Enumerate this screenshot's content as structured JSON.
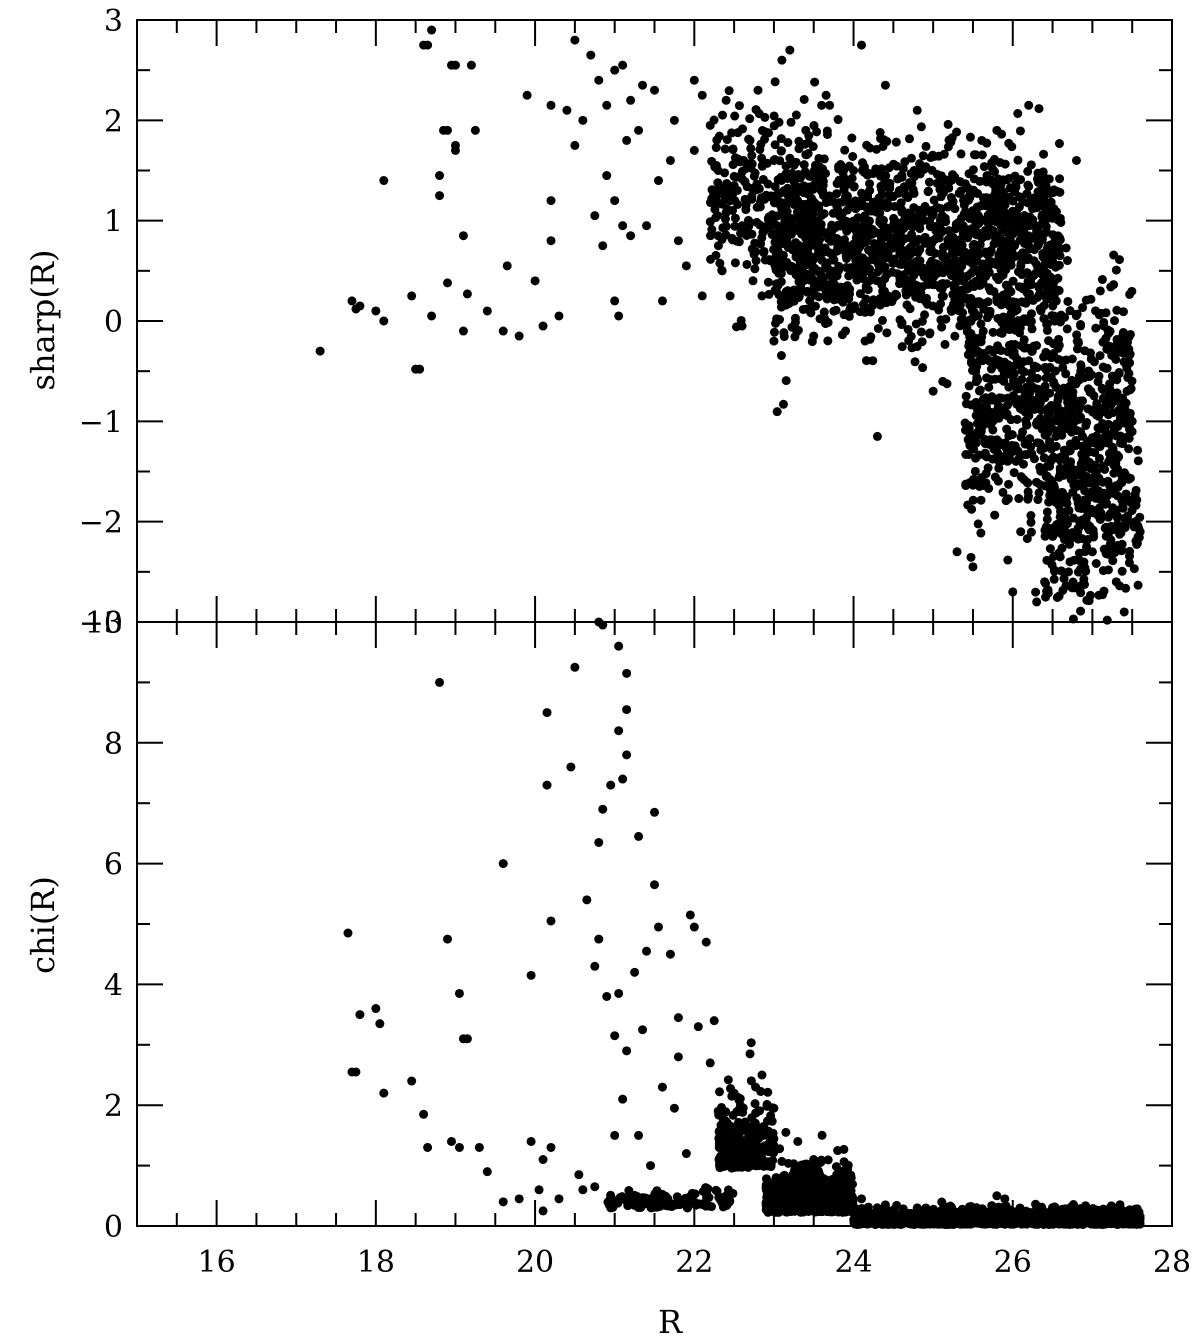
{
  "chart_data": [
    {
      "type": "scatter",
      "panel": "top",
      "title": "",
      "xlabel": "",
      "ylabel": "sharp(R)",
      "xlim": [
        15,
        28
      ],
      "ylim": [
        -3,
        3
      ],
      "x_ticks_major": [
        16,
        18,
        20,
        22,
        24,
        26,
        28
      ],
      "y_ticks_major": [
        -3,
        -2,
        -1,
        0,
        1,
        2,
        3
      ],
      "y_tick_labels": [
        "−3",
        "−2",
        "−1",
        "0",
        "1",
        "2",
        "3"
      ],
      "x_tick_labels_shown": false,
      "grid": false,
      "marker_color": "#000000",
      "series": [
        {
          "points": [
            [
              17.3,
              -0.3
            ],
            [
              17.7,
              0.2
            ],
            [
              17.75,
              0.12
            ],
            [
              17.8,
              0.15
            ],
            [
              18.0,
              0.1
            ],
            [
              18.1,
              1.4
            ],
            [
              18.1,
              0.0
            ],
            [
              18.45,
              0.25
            ],
            [
              18.5,
              -0.48
            ],
            [
              18.55,
              -0.48
            ],
            [
              18.6,
              2.75
            ],
            [
              18.65,
              2.75
            ],
            [
              18.7,
              2.9
            ],
            [
              18.7,
              0.05
            ],
            [
              18.8,
              1.45
            ],
            [
              18.8,
              1.25
            ],
            [
              18.85,
              1.9
            ],
            [
              18.9,
              1.9
            ],
            [
              18.9,
              0.38
            ],
            [
              18.95,
              2.55
            ],
            [
              19.0,
              1.75
            ],
            [
              19.0,
              1.7
            ],
            [
              19.0,
              2.55
            ],
            [
              19.1,
              0.85
            ],
            [
              19.1,
              -0.1
            ],
            [
              19.15,
              0.27
            ],
            [
              19.2,
              2.55
            ],
            [
              19.25,
              1.9
            ],
            [
              19.4,
              0.1
            ],
            [
              19.6,
              -0.1
            ],
            [
              19.65,
              0.55
            ],
            [
              19.8,
              -0.15
            ],
            [
              19.9,
              2.25
            ],
            [
              20.0,
              0.4
            ],
            [
              20.1,
              -0.05
            ],
            [
              20.2,
              2.15
            ],
            [
              20.2,
              0.8
            ],
            [
              20.2,
              1.2
            ],
            [
              20.3,
              0.05
            ],
            [
              20.4,
              2.1
            ],
            [
              20.5,
              2.8
            ],
            [
              20.5,
              1.75
            ],
            [
              20.6,
              2.0
            ],
            [
              20.7,
              2.65
            ],
            [
              20.75,
              1.05
            ],
            [
              20.8,
              2.4
            ],
            [
              20.85,
              0.75
            ],
            [
              20.9,
              2.15
            ],
            [
              20.9,
              1.45
            ],
            [
              21.0,
              2.5
            ],
            [
              21.0,
              1.2
            ],
            [
              21.0,
              0.2
            ],
            [
              21.05,
              0.05
            ],
            [
              21.1,
              2.55
            ],
            [
              21.1,
              0.95
            ],
            [
              21.15,
              1.8
            ],
            [
              21.2,
              2.2
            ],
            [
              21.2,
              0.85
            ],
            [
              21.3,
              1.9
            ],
            [
              21.35,
              2.35
            ],
            [
              21.4,
              0.95
            ],
            [
              21.5,
              2.3
            ],
            [
              21.55,
              1.4
            ],
            [
              21.6,
              0.2
            ],
            [
              21.7,
              1.6
            ],
            [
              21.75,
              2.0
            ],
            [
              21.8,
              0.8
            ],
            [
              21.9,
              0.55
            ],
            [
              22.0,
              2.4
            ],
            [
              22.0,
              1.7
            ],
            [
              22.1,
              2.25
            ],
            [
              22.1,
              0.25
            ],
            [
              22.2,
              1.95
            ],
            [
              22.3,
              1.5
            ],
            [
              22.3,
              0.85
            ],
            [
              22.35,
              0.5
            ],
            [
              22.4,
              2.2
            ],
            [
              22.5,
              1.35
            ],
            [
              22.6,
              0.95
            ],
            [
              22.6,
              -0.05
            ],
            [
              22.7,
              1.8
            ],
            [
              22.8,
              2.3
            ],
            [
              22.85,
              0.25
            ],
            [
              22.9,
              1.25
            ],
            [
              23.0,
              1.6
            ],
            [
              23.0,
              -0.2
            ],
            [
              23.1,
              2.6
            ],
            [
              23.2,
              2.7
            ],
            [
              23.2,
              0.95
            ],
            [
              23.3,
              0.45
            ],
            [
              23.4,
              1.9
            ],
            [
              23.5,
              -0.15
            ],
            [
              23.6,
              1.3
            ],
            [
              23.7,
              2.15
            ],
            [
              23.8,
              0.7
            ],
            [
              23.9,
              -0.1
            ],
            [
              24.0,
              1.5
            ],
            [
              24.1,
              2.75
            ],
            [
              24.2,
              0.4
            ],
            [
              24.3,
              -1.15
            ],
            [
              24.4,
              2.35
            ],
            [
              24.6,
              0.9
            ],
            [
              24.8,
              2.1
            ],
            [
              24.9,
              0.2
            ],
            [
              25.0,
              -0.7
            ],
            [
              25.1,
              1.3
            ],
            [
              25.3,
              -2.3
            ],
            [
              25.5,
              -2.45
            ],
            [
              25.6,
              0.4
            ],
            [
              25.8,
              1.9
            ],
            [
              26.0,
              -1.3
            ],
            [
              26.0,
              -2.7
            ],
            [
              26.1,
              -2.1
            ],
            [
              26.2,
              2.15
            ],
            [
              26.3,
              -2.8
            ],
            [
              26.4,
              -2.6
            ],
            [
              26.5,
              0.6
            ],
            [
              26.6,
              -1.9
            ],
            [
              26.7,
              -2.5
            ],
            [
              26.8,
              1.6
            ],
            [
              27.0,
              -2.3
            ],
            [
              27.1,
              0.3
            ],
            [
              27.2,
              -1.2
            ],
            [
              27.3,
              -2.6
            ],
            [
              27.4,
              -2.9
            ],
            [
              27.5,
              -1.0
            ],
            [
              27.6,
              -2.1
            ]
          ],
          "dense_regions": [
            {
              "x_range": [
                23.0,
                26.6
              ],
              "y_center": 0.75,
              "y_spread": 0.95,
              "count": 1500
            },
            {
              "x_range": [
                25.4,
                27.5
              ],
              "y_center": -0.9,
              "y_spread": 1.2,
              "count": 700
            },
            {
              "x_range": [
                26.4,
                27.6
              ],
              "y_center": -1.9,
              "y_spread": 0.9,
              "count": 300
            },
            {
              "x_range": [
                22.2,
                23.6
              ],
              "y_center": 1.2,
              "y_spread": 0.9,
              "count": 300
            }
          ]
        }
      ]
    },
    {
      "type": "scatter",
      "panel": "bottom",
      "title": "",
      "xlabel": "R",
      "ylabel": "chi(R)",
      "xlim": [
        15,
        28
      ],
      "ylim": [
        0,
        10
      ],
      "x_ticks_major": [
        16,
        18,
        20,
        22,
        24,
        26,
        28
      ],
      "x_tick_labels": [
        "16",
        "18",
        "20",
        "22",
        "24",
        "26",
        "28"
      ],
      "y_ticks_major": [
        0,
        2,
        4,
        6,
        8,
        10
      ],
      "y_tick_labels": [
        "0",
        "2",
        "4",
        "6",
        "8",
        "10"
      ],
      "grid": false,
      "marker_color": "#000000",
      "series": [
        {
          "points": [
            [
              17.65,
              4.85
            ],
            [
              17.7,
              2.55
            ],
            [
              17.75,
              2.55
            ],
            [
              17.8,
              3.5
            ],
            [
              18.0,
              3.6
            ],
            [
              18.05,
              3.35
            ],
            [
              18.1,
              2.2
            ],
            [
              18.45,
              2.4
            ],
            [
              18.6,
              1.85
            ],
            [
              18.65,
              1.3
            ],
            [
              18.8,
              9.0
            ],
            [
              18.9,
              4.75
            ],
            [
              18.95,
              1.4
            ],
            [
              19.05,
              1.3
            ],
            [
              19.05,
              3.85
            ],
            [
              19.1,
              3.1
            ],
            [
              19.15,
              3.1
            ],
            [
              19.3,
              1.3
            ],
            [
              19.4,
              0.9
            ],
            [
              19.6,
              0.4
            ],
            [
              19.6,
              6.0
            ],
            [
              19.8,
              0.45
            ],
            [
              19.95,
              4.15
            ],
            [
              19.95,
              1.4
            ],
            [
              20.05,
              0.6
            ],
            [
              20.1,
              1.1
            ],
            [
              20.1,
              0.25
            ],
            [
              20.15,
              7.3
            ],
            [
              20.15,
              8.5
            ],
            [
              20.2,
              5.05
            ],
            [
              20.2,
              1.3
            ],
            [
              20.3,
              0.45
            ],
            [
              20.45,
              7.6
            ],
            [
              20.5,
              9.25
            ],
            [
              20.55,
              0.85
            ],
            [
              20.6,
              0.6
            ],
            [
              20.65,
              5.4
            ],
            [
              20.75,
              0.65
            ],
            [
              20.75,
              4.3
            ],
            [
              20.8,
              10.0
            ],
            [
              20.8,
              4.75
            ],
            [
              20.8,
              6.35
            ],
            [
              20.85,
              6.9
            ],
            [
              20.85,
              9.95
            ],
            [
              20.9,
              3.8
            ],
            [
              20.95,
              7.3
            ],
            [
              20.95,
              0.3
            ],
            [
              21.0,
              1.5
            ],
            [
              21.0,
              3.15
            ],
            [
              21.05,
              9.6
            ],
            [
              21.05,
              8.2
            ],
            [
              21.05,
              3.85
            ],
            [
              21.1,
              7.4
            ],
            [
              21.1,
              2.1
            ],
            [
              21.15,
              9.15
            ],
            [
              21.15,
              8.55
            ],
            [
              21.15,
              7.8
            ],
            [
              21.15,
              2.9
            ],
            [
              21.25,
              4.2
            ],
            [
              21.3,
              6.45
            ],
            [
              21.3,
              1.5
            ],
            [
              21.35,
              3.25
            ],
            [
              21.4,
              4.55
            ],
            [
              21.45,
              1.0
            ],
            [
              21.5,
              6.85
            ],
            [
              21.5,
              5.65
            ],
            [
              21.55,
              4.95
            ],
            [
              21.6,
              2.3
            ],
            [
              21.7,
              4.5
            ],
            [
              21.75,
              1.95
            ],
            [
              21.8,
              2.8
            ],
            [
              21.8,
              3.45
            ],
            [
              21.9,
              1.2
            ],
            [
              21.95,
              5.15
            ],
            [
              22.0,
              4.95
            ],
            [
              22.05,
              3.3
            ],
            [
              22.15,
              4.7
            ],
            [
              22.2,
              2.7
            ],
            [
              22.25,
              3.4
            ],
            [
              22.3,
              1.9
            ],
            [
              22.4,
              0.5
            ],
            [
              22.5,
              2.2
            ],
            [
              22.6,
              1.3
            ],
            [
              22.7,
              2.85
            ],
            [
              22.85,
              2.5
            ],
            [
              23.0,
              1.95
            ],
            [
              23.15,
              1.55
            ],
            [
              23.3,
              1.4
            ],
            [
              23.5,
              1.1
            ],
            [
              23.6,
              0.75
            ],
            [
              23.8,
              0.55
            ],
            [
              24.1,
              0.45
            ],
            [
              24.4,
              0.35
            ],
            [
              24.8,
              0.3
            ],
            [
              25.1,
              0.25
            ],
            [
              25.5,
              0.2
            ],
            [
              25.8,
              0.5
            ],
            [
              25.9,
              0.45
            ],
            [
              26.1,
              0.25
            ],
            [
              26.3,
              0.3
            ],
            [
              26.6,
              0.2
            ],
            [
              26.9,
              0.15
            ],
            [
              27.2,
              0.12
            ],
            [
              27.5,
              0.08
            ]
          ],
          "dense_regions": [
            {
              "x_range": [
                22.3,
                23.0
              ],
              "y_center": 1.6,
              "y_spread": 1.3,
              "count": 250
            },
            {
              "x_range": [
                22.9,
                24.0
              ],
              "y_center": 0.6,
              "y_spread": 0.75,
              "count": 700
            },
            {
              "x_range": [
                24.0,
                27.6
              ],
              "y_center": 0.15,
              "y_spread": 0.25,
              "count": 1600
            },
            {
              "x_range": [
                20.9,
                22.5
              ],
              "y_center": 0.45,
              "y_spread": 0.3,
              "count": 120
            }
          ]
        }
      ]
    }
  ]
}
